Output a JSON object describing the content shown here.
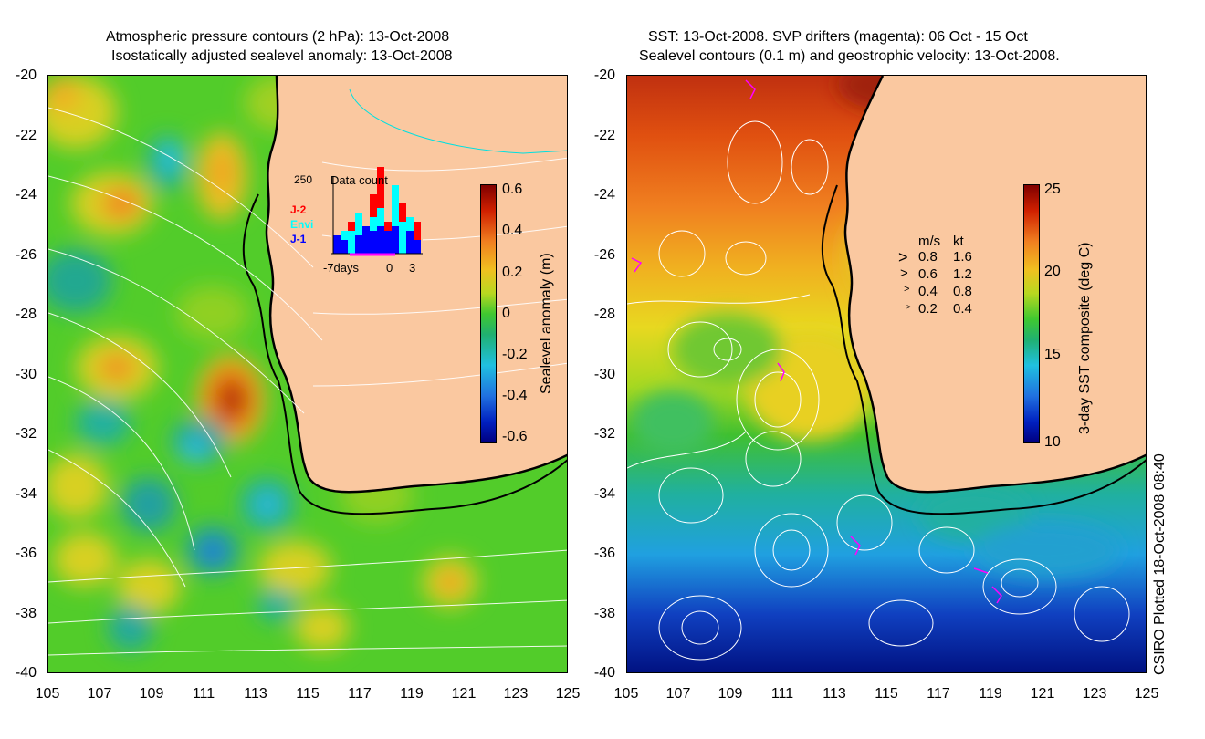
{
  "left": {
    "title_line1": "Atmospheric pressure contours (2 hPa): 13-Oct-2008",
    "title_line2": "Isostatically adjusted sealevel anomaly: 13-Oct-2008",
    "colorbar_title": "Sealevel anomaly (m)",
    "colorbar_ticks": [
      "0.6",
      "0.4",
      "0.2",
      "0",
      "-0.2",
      "-0.4",
      "-0.6"
    ],
    "inset": {
      "max_label": "250",
      "title": "Data count",
      "series": [
        {
          "label": "J-2",
          "color": "#ff0000"
        },
        {
          "label": "Envi",
          "color": "#00ffff"
        },
        {
          "label": "J-1",
          "color": "#0000ff"
        }
      ],
      "x_labels": [
        "-7days",
        "0",
        "3"
      ]
    }
  },
  "right": {
    "title_line1": "SST: 13-Oct-2008. SVP drifters (magenta): 06 Oct - 15 Oct",
    "title_line2": "Sealevel contours (0.1 m) and geostrophic velocity: 13-Oct-2008.",
    "colorbar_title": "3-day SST composite (deg C)",
    "colorbar_ticks": [
      "25",
      "20",
      "15",
      "10"
    ],
    "velocity_legend": {
      "header_ms": "m/s",
      "header_kt": "kt",
      "rows": [
        {
          "ms": "0.8",
          "kt": "1.6"
        },
        {
          "ms": "0.6",
          "kt": "1.2"
        },
        {
          "ms": "0.4",
          "kt": "0.8"
        },
        {
          "ms": "0.2",
          "kt": "0.4"
        }
      ]
    }
  },
  "axes": {
    "lat_ticks": [
      "-20",
      "-22",
      "-24",
      "-26",
      "-28",
      "-30",
      "-32",
      "-34",
      "-36",
      "-38",
      "-40"
    ],
    "lon_ticks": [
      "105",
      "107",
      "109",
      "111",
      "113",
      "115",
      "117",
      "119",
      "121",
      "123",
      "125"
    ]
  },
  "credit": "CSIRO Plotted 18-Oct-2008 08:40",
  "colors": {
    "land": "#fac8a0",
    "coast": "#000000",
    "contour": "#ffffff",
    "drifter": "#ff00ff",
    "bathy_200m": "#00e0e0"
  }
}
